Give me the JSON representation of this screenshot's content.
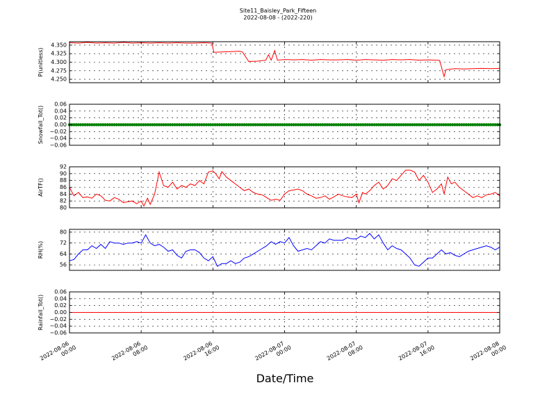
{
  "header": {
    "title": "Site11_Baisley_Park_Fifteen",
    "subtitle": "2022-08-08 - (2022-220)"
  },
  "x_axis": {
    "label": "Date/Time",
    "ticks": [
      {
        "hour": 0,
        "line1": "2022-08-06",
        "line2": "00:00"
      },
      {
        "hour": 8,
        "line1": "2022-08-06",
        "line2": "08:00"
      },
      {
        "hour": 16,
        "line1": "2022-08-06",
        "line2": "16:00"
      },
      {
        "hour": 24,
        "line1": "2022-08-07",
        "line2": "00:00"
      },
      {
        "hour": 32,
        "line1": "2022-08-07",
        "line2": "08:00"
      },
      {
        "hour": 40,
        "line1": "2022-08-07",
        "line2": "16:00"
      },
      {
        "hour": 48,
        "line1": "2022-08-08",
        "line2": "00:00"
      }
    ],
    "range_hours": [
      0,
      48
    ]
  },
  "chart_data": [
    {
      "type": "line",
      "ylabel": "P(unitless)",
      "ylim": [
        4.24,
        4.36
      ],
      "yticks": [
        4.25,
        4.275,
        4.3,
        4.325,
        4.35
      ],
      "ytick_labels": [
        "4.250",
        "4.275",
        "4.300",
        "4.325",
        "4.350"
      ],
      "grid": true,
      "color": "#ff0000",
      "x": [
        0,
        1,
        2,
        3,
        4,
        5,
        6,
        7,
        8,
        9,
        10,
        11,
        12,
        13,
        14,
        15,
        15.9,
        16.1,
        17,
        18,
        19,
        19.3,
        20,
        21,
        21.9,
        22.2,
        22.5,
        22.9,
        23.2,
        24,
        25,
        26,
        27,
        28,
        29,
        30,
        31,
        32,
        33,
        34,
        35,
        36,
        37,
        38,
        39,
        40,
        41,
        41.3,
        41.8,
        42,
        43,
        44,
        45,
        46,
        47,
        48
      ],
      "values": [
        4.357,
        4.356,
        4.358,
        4.356,
        4.357,
        4.356,
        4.358,
        4.356,
        4.357,
        4.356,
        4.357,
        4.356,
        4.357,
        4.356,
        4.356,
        4.357,
        4.356,
        4.329,
        4.33,
        4.331,
        4.332,
        4.33,
        4.302,
        4.303,
        4.306,
        4.322,
        4.306,
        4.334,
        4.306,
        4.308,
        4.307,
        4.308,
        4.306,
        4.308,
        4.307,
        4.307,
        4.308,
        4.306,
        4.308,
        4.307,
        4.306,
        4.308,
        4.307,
        4.308,
        4.306,
        4.307,
        4.306,
        4.305,
        4.258,
        4.278,
        4.281,
        4.28,
        4.281,
        4.282,
        4.281,
        4.282
      ]
    },
    {
      "type": "scatter",
      "ylabel": "Snowfall_Tot()",
      "ylim": [
        -0.06,
        0.06
      ],
      "yticks": [
        -0.06,
        -0.04,
        -0.02,
        0.0,
        0.02,
        0.04,
        0.06
      ],
      "ytick_labels": [
        "−0.06",
        "−0.04",
        "−0.02",
        "0.00",
        "0.02",
        "0.04",
        "0.06"
      ],
      "grid": true,
      "color": "#008000",
      "x_range": [
        0,
        48
      ],
      "constant_value": 0.0
    },
    {
      "type": "line",
      "ylabel": "AirTF()",
      "ylim": [
        80,
        92
      ],
      "yticks": [
        80,
        82,
        84,
        86,
        88,
        90,
        92
      ],
      "ytick_labels": [
        "80",
        "82",
        "84",
        "86",
        "88",
        "90",
        "92"
      ],
      "grid": true,
      "color": "#ff0000",
      "x": [
        0,
        0.5,
        1,
        1.5,
        2,
        2.5,
        3,
        3.5,
        4,
        4.5,
        5,
        5.5,
        6,
        6.5,
        7,
        7.5,
        8,
        8.3,
        8.7,
        9,
        9.5,
        10,
        10.5,
        11,
        11.5,
        12,
        12.5,
        13,
        13.5,
        14,
        14.5,
        15,
        15.5,
        16,
        16.3,
        16.7,
        17,
        17.5,
        18,
        18.5,
        19,
        19.5,
        20,
        20.5,
        21,
        21.5,
        22,
        22.5,
        23,
        23.5,
        24,
        24.5,
        25,
        25.5,
        26,
        26.5,
        27,
        27.5,
        28,
        28.5,
        29,
        29.5,
        30,
        30.5,
        31,
        31.5,
        32,
        32.3,
        32.7,
        33,
        33.5,
        34,
        34.5,
        35,
        35.5,
        36,
        36.5,
        37,
        37.5,
        38,
        38.5,
        39,
        39.5,
        40,
        40.5,
        41,
        41.5,
        41.8,
        42.2,
        42.6,
        43,
        43.5,
        44,
        44.5,
        45,
        45.5,
        46,
        46.5,
        47,
        47.5,
        48
      ],
      "values": [
        86.0,
        83.5,
        84.5,
        83.0,
        83.2,
        82.8,
        84.0,
        83.5,
        82.2,
        82.0,
        83.0,
        82.5,
        81.5,
        81.8,
        82.0,
        81.2,
        82.0,
        80.5,
        82.8,
        81.0,
        84.0,
        90.5,
        86.5,
        86.0,
        87.5,
        85.5,
        86.5,
        86.0,
        87.0,
        86.5,
        88.0,
        87.0,
        90.5,
        90.8,
        90.0,
        88.5,
        90.6,
        89.0,
        88.0,
        87.0,
        86.0,
        85.0,
        85.5,
        84.5,
        84.0,
        83.8,
        83.0,
        82.2,
        82.5,
        82.2,
        84.0,
        85.0,
        85.2,
        85.5,
        85.0,
        84.0,
        83.5,
        82.8,
        83.0,
        83.5,
        82.5,
        83.2,
        84.0,
        83.5,
        83.2,
        83.0,
        84.0,
        81.5,
        84.5,
        84.0,
        85.0,
        86.5,
        87.5,
        85.5,
        86.5,
        88.5,
        88.0,
        89.5,
        91.0,
        91.0,
        90.5,
        88.0,
        89.5,
        87.5,
        84.5,
        85.5,
        87.0,
        84.0,
        89.0,
        87.0,
        87.5,
        86.0,
        85.0,
        84.0,
        83.0,
        83.5,
        83.0,
        83.8,
        84.0,
        84.5,
        83.5
      ]
    },
    {
      "type": "line",
      "ylabel": "RH(%)",
      "ylim": [
        52,
        82
      ],
      "yticks": [
        56,
        64,
        72,
        80
      ],
      "ytick_labels": [
        "56",
        "64",
        "72",
        "80"
      ],
      "grid": true,
      "color": "#0000ff",
      "x": [
        0,
        0.5,
        1,
        1.5,
        2,
        2.5,
        3,
        3.5,
        4,
        4.5,
        5,
        5.5,
        6,
        6.5,
        7,
        7.5,
        8,
        8.5,
        9,
        9.5,
        10,
        10.5,
        11,
        11.5,
        12,
        12.5,
        13,
        13.5,
        14,
        14.5,
        15,
        15.5,
        16,
        16.5,
        17,
        17.5,
        18,
        18.5,
        19,
        19.5,
        20,
        20.5,
        21,
        21.5,
        22,
        22.5,
        23,
        23.5,
        24,
        24.5,
        25,
        25.5,
        26,
        26.5,
        27,
        27.5,
        28,
        28.5,
        29,
        29.5,
        30,
        30.5,
        31,
        31.5,
        32,
        32.5,
        33,
        33.5,
        34,
        34.5,
        35,
        35.5,
        36,
        36.5,
        37,
        37.5,
        38,
        38.5,
        39,
        39.5,
        40,
        40.5,
        41,
        41.5,
        42,
        42.5,
        43,
        43.5,
        44,
        44.5,
        45,
        45.5,
        46,
        46.5,
        47,
        47.5,
        48
      ],
      "values": [
        59,
        60,
        64,
        67,
        67,
        70,
        68,
        71,
        68,
        73,
        72,
        72,
        71,
        72,
        72,
        73,
        72,
        78,
        72,
        70,
        71,
        69,
        66,
        67,
        63,
        61,
        66,
        67,
        67,
        65,
        61,
        59,
        62,
        55,
        57,
        57,
        59,
        57,
        58,
        61,
        62,
        64,
        66,
        68,
        70,
        73,
        71,
        73,
        72,
        76,
        70,
        66,
        67,
        68,
        67,
        70,
        73,
        72,
        75,
        74,
        74,
        74,
        76,
        75,
        75,
        77,
        76,
        79,
        75,
        78,
        72,
        67,
        70,
        68,
        67,
        64,
        61,
        56,
        55,
        58,
        61,
        61,
        64,
        67,
        64,
        65,
        63,
        62,
        64,
        66,
        67,
        68,
        69,
        70,
        69,
        67,
        69
      ]
    },
    {
      "type": "line",
      "ylabel": "Rainfall_Tot()",
      "ylim": [
        -0.06,
        0.06
      ],
      "yticks": [
        -0.06,
        -0.04,
        -0.02,
        0.0,
        0.02,
        0.04,
        0.06
      ],
      "ytick_labels": [
        "−0.06",
        "−0.04",
        "−0.02",
        "0.00",
        "0.02",
        "0.04",
        "0.06"
      ],
      "grid": true,
      "color": "#ff0000",
      "x": [
        0,
        48
      ],
      "values": [
        0.0,
        0.0
      ]
    }
  ]
}
